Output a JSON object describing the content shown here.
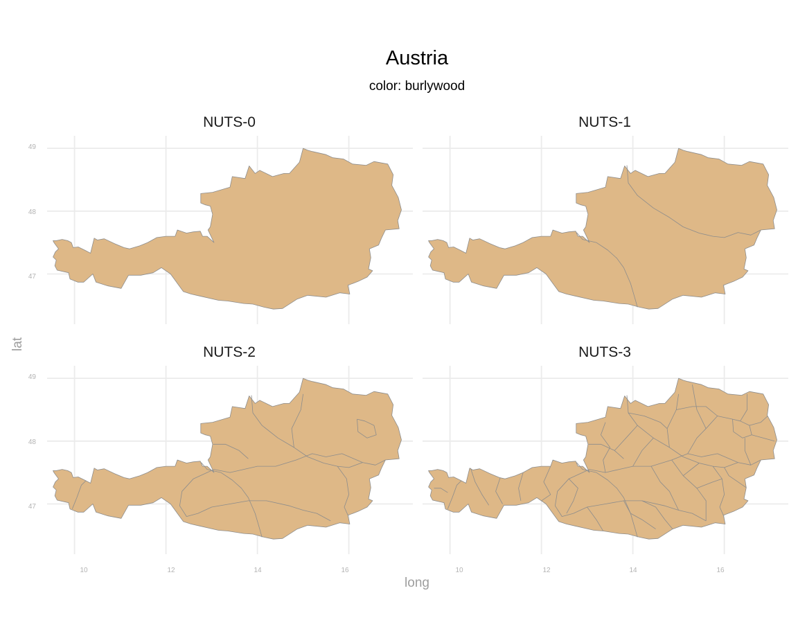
{
  "chart_data": {
    "type": "map",
    "title": "Austria",
    "subtitle": "color: burlywood",
    "xlabel": "long",
    "ylabel": "lat",
    "fill_color": "#deb887",
    "border_color": "#8c8c8c",
    "xlim": [
      9.4,
      17.4
    ],
    "ylim": [
      46.2,
      49.2
    ],
    "x_ticks": [
      10,
      12,
      14,
      16
    ],
    "y_ticks": [
      47,
      48,
      49
    ],
    "x_tick_labels": [
      "10",
      "12",
      "14",
      "16"
    ],
    "y_tick_labels": [
      "47",
      "48",
      "49"
    ],
    "facets": [
      {
        "label": "NUTS-0",
        "level": 0
      },
      {
        "label": "NUTS-1",
        "level": 1
      },
      {
        "label": "NUTS-2",
        "level": 2
      },
      {
        "label": "NUTS-3",
        "level": 3
      }
    ],
    "outline": [
      [
        9.53,
        47.53
      ],
      [
        9.6,
        47.53
      ],
      [
        9.73,
        47.55
      ],
      [
        9.85,
        47.53
      ],
      [
        9.93,
        47.5
      ],
      [
        9.97,
        47.42
      ],
      [
        10.08,
        47.43
      ],
      [
        10.22,
        47.38
      ],
      [
        10.35,
        47.33
      ],
      [
        10.43,
        47.57
      ],
      [
        10.5,
        47.54
      ],
      [
        10.65,
        47.56
      ],
      [
        10.88,
        47.48
      ],
      [
        11.08,
        47.42
      ],
      [
        11.2,
        47.4
      ],
      [
        11.43,
        47.45
      ],
      [
        11.6,
        47.5
      ],
      [
        11.8,
        47.58
      ],
      [
        12.0,
        47.6
      ],
      [
        12.2,
        47.6
      ],
      [
        12.25,
        47.7
      ],
      [
        12.45,
        47.65
      ],
      [
        12.6,
        47.67
      ],
      [
        12.75,
        47.68
      ],
      [
        12.8,
        47.6
      ],
      [
        12.9,
        47.6
      ],
      [
        13.05,
        47.5
      ],
      [
        12.92,
        47.7
      ],
      [
        12.97,
        47.75
      ],
      [
        13.02,
        47.95
      ],
      [
        12.97,
        48.08
      ],
      [
        12.86,
        48.1
      ],
      [
        12.76,
        48.13
      ],
      [
        12.76,
        48.28
      ],
      [
        13.02,
        48.3
      ],
      [
        13.4,
        48.38
      ],
      [
        13.45,
        48.55
      ],
      [
        13.73,
        48.52
      ],
      [
        13.82,
        48.72
      ],
      [
        13.95,
        48.6
      ],
      [
        14.05,
        48.65
      ],
      [
        14.33,
        48.55
      ],
      [
        14.58,
        48.6
      ],
      [
        14.7,
        48.6
      ],
      [
        14.92,
        48.78
      ],
      [
        15.0,
        49.0
      ],
      [
        15.1,
        48.97
      ],
      [
        15.2,
        48.95
      ],
      [
        15.5,
        48.9
      ],
      [
        15.65,
        48.85
      ],
      [
        15.88,
        48.83
      ],
      [
        16.08,
        48.75
      ],
      [
        16.38,
        48.73
      ],
      [
        16.55,
        48.79
      ],
      [
        16.85,
        48.75
      ],
      [
        16.97,
        48.58
      ],
      [
        16.94,
        48.41
      ],
      [
        17.08,
        48.22
      ],
      [
        17.15,
        48.02
      ],
      [
        17.07,
        47.85
      ],
      [
        17.1,
        47.72
      ],
      [
        16.8,
        47.7
      ],
      [
        16.72,
        47.58
      ],
      [
        16.65,
        47.46
      ],
      [
        16.45,
        47.4
      ],
      [
        16.48,
        47.26
      ],
      [
        16.43,
        47.08
      ],
      [
        16.52,
        47.05
      ],
      [
        16.4,
        46.95
      ],
      [
        16.2,
        46.88
      ],
      [
        15.98,
        46.82
      ],
      [
        16.02,
        46.68
      ],
      [
        15.8,
        46.7
      ],
      [
        15.5,
        46.63
      ],
      [
        15.1,
        46.66
      ],
      [
        14.87,
        46.6
      ],
      [
        14.55,
        46.45
      ],
      [
        14.35,
        46.44
      ],
      [
        14.15,
        46.47
      ],
      [
        13.9,
        46.52
      ],
      [
        13.7,
        46.53
      ],
      [
        13.35,
        46.57
      ],
      [
        13.15,
        46.58
      ],
      [
        12.73,
        46.65
      ],
      [
        12.55,
        46.68
      ],
      [
        12.38,
        46.72
      ],
      [
        12.25,
        46.85
      ],
      [
        12.1,
        47.0
      ],
      [
        11.9,
        47.1
      ],
      [
        11.72,
        47.02
      ],
      [
        11.45,
        46.98
      ],
      [
        11.18,
        46.98
      ],
      [
        11.02,
        46.77
      ],
      [
        10.73,
        46.81
      ],
      [
        10.47,
        46.87
      ],
      [
        10.4,
        47.0
      ],
      [
        10.2,
        46.87
      ],
      [
        10.07,
        46.87
      ],
      [
        9.9,
        46.92
      ],
      [
        9.87,
        47.02
      ],
      [
        9.62,
        47.06
      ],
      [
        9.57,
        47.13
      ],
      [
        9.6,
        47.22
      ],
      [
        9.53,
        47.27
      ],
      [
        9.58,
        47.35
      ],
      [
        9.65,
        47.4
      ],
      [
        9.55,
        47.5
      ]
    ],
    "boundaries": {
      "1": [
        [
          [
            13.87,
            48.73
          ],
          [
            13.9,
            48.45
          ],
          [
            14.1,
            48.25
          ],
          [
            14.45,
            48.05
          ],
          [
            14.8,
            47.9
          ],
          [
            15.1,
            47.75
          ],
          [
            15.45,
            47.65
          ],
          [
            15.75,
            47.6
          ],
          [
            16.0,
            47.58
          ],
          [
            16.3,
            47.66
          ],
          [
            16.58,
            47.62
          ],
          [
            16.8,
            47.7
          ]
        ],
        [
          [
            12.77,
            47.66
          ],
          [
            12.9,
            47.55
          ],
          [
            13.2,
            47.5
          ],
          [
            13.45,
            47.38
          ],
          [
            13.65,
            47.25
          ],
          [
            13.8,
            47.1
          ],
          [
            13.95,
            46.85
          ],
          [
            14.05,
            46.6
          ],
          [
            14.1,
            46.47
          ]
        ]
      ],
      "2": [
        [
          [
            9.95,
            46.92
          ],
          [
            10.05,
            47.1
          ],
          [
            10.15,
            47.3
          ],
          [
            10.25,
            47.37
          ]
        ],
        [
          [
            13.05,
            47.55
          ],
          [
            12.6,
            47.4
          ],
          [
            12.35,
            47.2
          ],
          [
            12.3,
            46.97
          ],
          [
            12.45,
            46.8
          ],
          [
            12.7,
            46.85
          ],
          [
            13.0,
            46.95
          ],
          [
            13.4,
            47.0
          ],
          [
            13.8,
            47.05
          ],
          [
            14.2,
            47.05
          ],
          [
            14.7,
            46.97
          ],
          [
            15.0,
            46.9
          ],
          [
            15.3,
            46.85
          ],
          [
            15.6,
            46.73
          ]
        ],
        [
          [
            13.05,
            47.55
          ],
          [
            13.4,
            47.5
          ],
          [
            13.7,
            47.55
          ],
          [
            14.0,
            47.6
          ],
          [
            14.4,
            47.6
          ],
          [
            14.85,
            47.7
          ],
          [
            15.2,
            47.8
          ],
          [
            15.5,
            47.75
          ],
          [
            15.85,
            47.8
          ],
          [
            16.3,
            47.66
          ]
        ],
        [
          [
            13.03,
            47.95
          ],
          [
            13.3,
            47.95
          ],
          [
            13.6,
            47.85
          ],
          [
            13.8,
            47.72
          ]
        ],
        [
          [
            14.8,
            47.9
          ],
          [
            14.75,
            48.2
          ],
          [
            14.95,
            48.5
          ],
          [
            15.0,
            48.75
          ]
        ],
        [
          [
            16.18,
            48.35
          ],
          [
            16.35,
            48.32
          ],
          [
            16.55,
            48.25
          ],
          [
            16.6,
            48.1
          ],
          [
            16.4,
            48.05
          ],
          [
            16.2,
            48.15
          ],
          [
            16.18,
            48.35
          ]
        ],
        [
          [
            15.75,
            47.6
          ],
          [
            15.95,
            47.4
          ],
          [
            16.0,
            47.15
          ],
          [
            15.9,
            46.95
          ],
          [
            15.98,
            46.82
          ]
        ]
      ],
      "3": [
        [
          [
            10.45,
            47.57
          ],
          [
            10.55,
            47.35
          ],
          [
            10.7,
            47.15
          ],
          [
            10.85,
            46.98
          ]
        ],
        [
          [
            9.65,
            47.25
          ],
          [
            9.8,
            47.25
          ],
          [
            9.95,
            47.18
          ]
        ],
        [
          [
            11.1,
            47.42
          ],
          [
            11.0,
            47.2
          ],
          [
            11.15,
            47.0
          ]
        ],
        [
          [
            11.6,
            47.5
          ],
          [
            11.5,
            47.25
          ],
          [
            11.55,
            47.05
          ]
        ],
        [
          [
            12.2,
            47.6
          ],
          [
            12.05,
            47.35
          ],
          [
            12.2,
            47.15
          ],
          [
            12.0,
            47.05
          ]
        ],
        [
          [
            12.6,
            47.4
          ],
          [
            12.8,
            47.25
          ],
          [
            12.7,
            47.05
          ],
          [
            12.55,
            46.85
          ]
        ],
        [
          [
            13.4,
            47.5
          ],
          [
            13.35,
            47.7
          ],
          [
            13.5,
            47.9
          ],
          [
            13.3,
            48.1
          ],
          [
            13.4,
            48.3
          ]
        ],
        [
          [
            13.6,
            47.85
          ],
          [
            13.85,
            48.05
          ],
          [
            14.1,
            48.25
          ]
        ],
        [
          [
            14.0,
            47.6
          ],
          [
            14.2,
            47.85
          ],
          [
            14.45,
            48.05
          ]
        ],
        [
          [
            13.9,
            48.45
          ],
          [
            14.25,
            48.4
          ],
          [
            14.6,
            48.3
          ],
          [
            14.75,
            48.2
          ]
        ],
        [
          [
            14.95,
            48.5
          ],
          [
            15.3,
            48.55
          ],
          [
            15.6,
            48.55
          ],
          [
            15.85,
            48.4
          ]
        ],
        [
          [
            15.2,
            47.8
          ],
          [
            15.4,
            48.05
          ],
          [
            15.6,
            48.2
          ],
          [
            15.85,
            48.4
          ],
          [
            16.18,
            48.35
          ]
        ],
        [
          [
            15.6,
            48.2
          ],
          [
            15.4,
            48.5
          ],
          [
            15.3,
            48.9
          ]
        ],
        [
          [
            16.35,
            48.32
          ],
          [
            16.5,
            48.5
          ],
          [
            16.5,
            48.75
          ]
        ],
        [
          [
            16.55,
            48.25
          ],
          [
            16.8,
            48.3
          ],
          [
            16.95,
            48.4
          ]
        ],
        [
          [
            16.6,
            48.1
          ],
          [
            16.85,
            48.05
          ],
          [
            17.1,
            48.0
          ]
        ],
        [
          [
            16.58,
            47.62
          ],
          [
            16.45,
            47.85
          ],
          [
            16.45,
            48.05
          ]
        ],
        [
          [
            16.48,
            47.26
          ],
          [
            16.3,
            47.35
          ],
          [
            16.1,
            47.45
          ],
          [
            16.0,
            47.58
          ]
        ],
        [
          [
            13.0,
            46.95
          ],
          [
            13.2,
            46.75
          ],
          [
            13.35,
            46.57
          ]
        ],
        [
          [
            13.8,
            47.05
          ],
          [
            13.95,
            46.85
          ],
          [
            14.2,
            46.75
          ],
          [
            14.5,
            46.6
          ]
        ],
        [
          [
            14.2,
            47.05
          ],
          [
            14.5,
            46.95
          ],
          [
            14.7,
            46.75
          ],
          [
            14.87,
            46.6
          ]
        ],
        [
          [
            14.4,
            47.6
          ],
          [
            14.6,
            47.35
          ],
          [
            14.8,
            47.2
          ],
          [
            15.0,
            46.9
          ]
        ],
        [
          [
            14.85,
            47.7
          ],
          [
            15.1,
            47.45
          ],
          [
            15.4,
            47.25
          ],
          [
            15.6,
            47.05
          ],
          [
            15.6,
            46.73
          ]
        ],
        [
          [
            15.1,
            47.45
          ],
          [
            15.45,
            47.65
          ]
        ],
        [
          [
            15.4,
            47.25
          ],
          [
            15.75,
            47.35
          ],
          [
            15.95,
            47.4
          ]
        ]
      ]
    }
  }
}
